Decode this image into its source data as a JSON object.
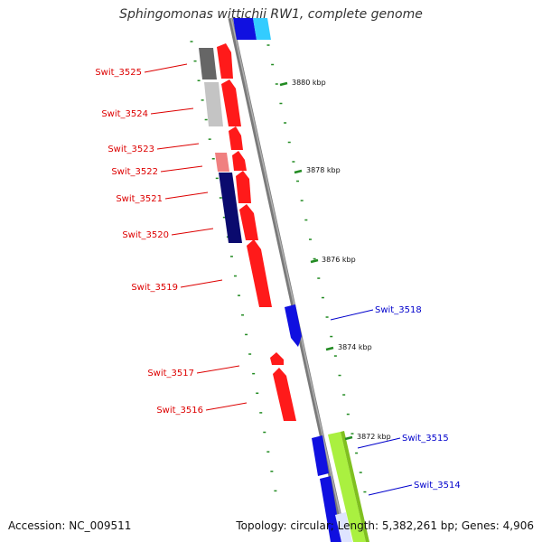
{
  "title": "Sphingomonas wittichii RW1, complete genome",
  "footer": {
    "accession": "Accession: NC_009511",
    "summary": "Topology: circular; Length: 5,382,261 bp; Genes: 4,906"
  },
  "colors": {
    "forward_gene": "#ff1a1a",
    "forward_label": "#dd0000",
    "reverse_gene": "#1010e0",
    "reverse_label": "#0000cc",
    "backbone": "#7a7a7a",
    "tick": "#228b22",
    "dark_navy": "#0a0a6e",
    "dark_grey": "#666666",
    "light_grey": "#c4c4c4",
    "pink": "#f08080",
    "lime": "#aaf040",
    "cyan": "#33ccff"
  },
  "scale_labels": [
    "3880 kbp",
    "3878 kbp",
    "3876 kbp",
    "3874 kbp",
    "3872 kbp"
  ],
  "genes_left": [
    {
      "id": "Swit_3525",
      "label": "Swit_3525"
    },
    {
      "id": "Swit_3524",
      "label": "Swit_3524"
    },
    {
      "id": "Swit_3523",
      "label": "Swit_3523"
    },
    {
      "id": "Swit_3522",
      "label": "Swit_3522"
    },
    {
      "id": "Swit_3521",
      "label": "Swit_3521"
    },
    {
      "id": "Swit_3520",
      "label": "Swit_3520"
    },
    {
      "id": "Swit_3519",
      "label": "Swit_3519"
    },
    {
      "id": "Swit_3517",
      "label": "Swit_3517"
    },
    {
      "id": "Swit_3516",
      "label": "Swit_3516"
    }
  ],
  "genes_right": [
    {
      "id": "Swit_3518",
      "label": "Swit_3518"
    },
    {
      "id": "Swit_3515",
      "label": "Swit_3515"
    },
    {
      "id": "Swit_3514",
      "label": "Swit_3514"
    }
  ]
}
